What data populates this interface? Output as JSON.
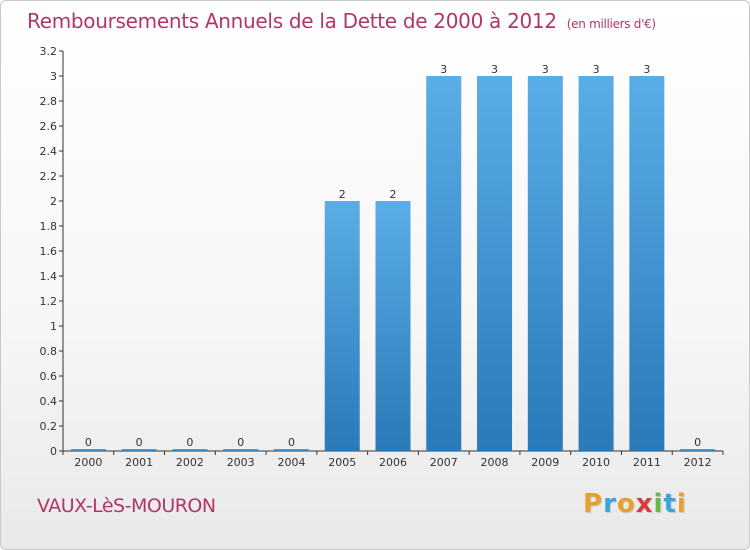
{
  "chart_data": {
    "type": "bar",
    "title": "Remboursements Annuels de la Dette de 2000 à 2012",
    "subtitle": "(en milliers d'€)",
    "xlabel": "",
    "ylabel": "",
    "categories": [
      "2000",
      "2001",
      "2002",
      "2003",
      "2004",
      "2005",
      "2006",
      "2007",
      "2008",
      "2009",
      "2010",
      "2011",
      "2012"
    ],
    "values": [
      0,
      0,
      0,
      0,
      0,
      2,
      2,
      3,
      3,
      3,
      3,
      3,
      0
    ],
    "ylim": [
      0,
      3.2
    ],
    "yticks": [
      "0",
      "0.2",
      "0.4",
      "0.6",
      "0.8",
      "1",
      "1.2",
      "1.4",
      "1.6",
      "1.8",
      "2",
      "2.2",
      "2.4",
      "2.6",
      "2.8",
      "3",
      "3.2"
    ],
    "grid": false,
    "bar_color_top": "#5aade6",
    "bar_color_bottom": "#2a79b8"
  },
  "footer": {
    "place_name": "VAUX-LèS-MOURON",
    "brand": {
      "letters": [
        "P",
        "r",
        "o",
        "x",
        "i",
        "t",
        "i"
      ],
      "colors": [
        "#e8a030",
        "#3aa5d8",
        "#e8a030",
        "#d93a3a",
        "#68b84a",
        "#3aa5d8",
        "#e8a030"
      ]
    }
  },
  "colors": {
    "title": "#b0376b",
    "axis": "#333333"
  }
}
